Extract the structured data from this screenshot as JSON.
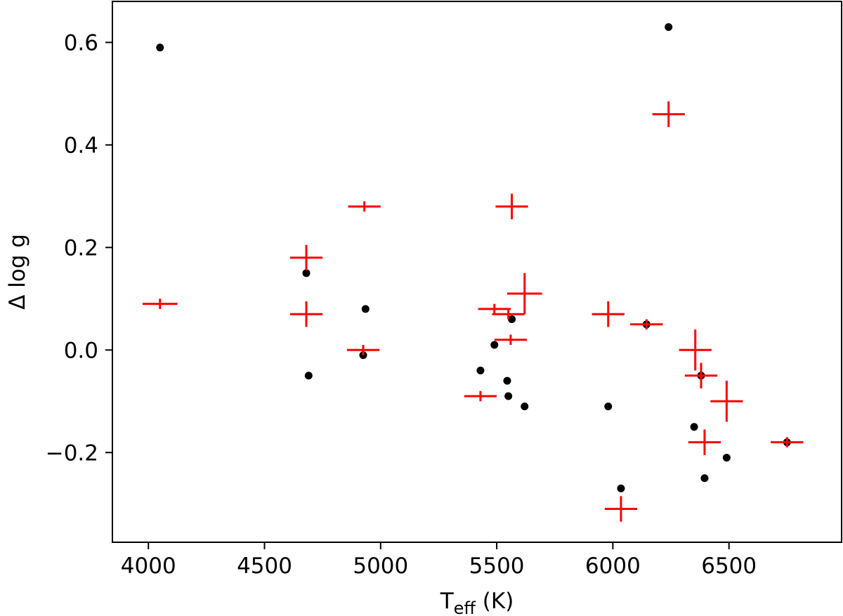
{
  "chart_data": {
    "type": "scatter",
    "xlabel": "T",
    "xlabel_subscript": "eff",
    "xlabel_suffix": " (K)",
    "ylabel": "Δ log g",
    "xlim": [
      3845,
      6985
    ],
    "ylim": [
      -0.375,
      0.68
    ],
    "xticks": [
      4000,
      4500,
      5000,
      5500,
      6000,
      6500
    ],
    "xtick_labels": [
      "4000",
      "4500",
      "5000",
      "5500",
      "6000",
      "6500"
    ],
    "yticks": [
      -0.2,
      0.0,
      0.2,
      0.4,
      0.6
    ],
    "ytick_labels": [
      "−0.2",
      "0.0",
      "0.2",
      "0.4",
      "0.6"
    ],
    "grid": false,
    "series": [
      {
        "marker": "dot",
        "color": "#000000",
        "points": [
          {
            "x": 4050,
            "y": 0.59
          },
          {
            "x": 4680,
            "y": 0.15
          },
          {
            "x": 4690,
            "y": -0.05
          },
          {
            "x": 4925,
            "y": -0.01
          },
          {
            "x": 4935,
            "y": 0.08
          },
          {
            "x": 5430,
            "y": -0.04
          },
          {
            "x": 5490,
            "y": 0.01
          },
          {
            "x": 5545,
            "y": -0.06
          },
          {
            "x": 5550,
            "y": -0.09
          },
          {
            "x": 5565,
            "y": 0.06
          },
          {
            "x": 5620,
            "y": -0.11
          },
          {
            "x": 5980,
            "y": -0.11
          },
          {
            "x": 6035,
            "y": -0.27
          },
          {
            "x": 6145,
            "y": 0.05
          },
          {
            "x": 6240,
            "y": 0.63
          },
          {
            "x": 6350,
            "y": -0.15
          },
          {
            "x": 6380,
            "y": -0.05
          },
          {
            "x": 6395,
            "y": -0.25
          },
          {
            "x": 6490,
            "y": -0.21
          },
          {
            "x": 6750,
            "y": -0.18
          }
        ]
      },
      {
        "marker": "cross",
        "color": "#ff0000",
        "points": [
          {
            "x": 4050,
            "y": 0.09,
            "xerr": 75,
            "yerr": 0.01
          },
          {
            "x": 4680,
            "y": 0.18,
            "xerr": 70,
            "yerr": 0.025
          },
          {
            "x": 4680,
            "y": 0.07,
            "xerr": 70,
            "yerr": 0.025
          },
          {
            "x": 4930,
            "y": 0.28,
            "xerr": 70,
            "yerr": 0.01
          },
          {
            "x": 4925,
            "y": 0.0,
            "xerr": 70,
            "yerr": 0.01
          },
          {
            "x": 5430,
            "y": -0.09,
            "xerr": 70,
            "yerr": 0.01
          },
          {
            "x": 5490,
            "y": 0.08,
            "xerr": 70,
            "yerr": 0.01
          },
          {
            "x": 5550,
            "y": 0.07,
            "xerr": 70,
            "yerr": 0.01
          },
          {
            "x": 5560,
            "y": 0.02,
            "xerr": 70,
            "yerr": 0.01
          },
          {
            "x": 5565,
            "y": 0.28,
            "xerr": 70,
            "yerr": 0.025
          },
          {
            "x": 5620,
            "y": 0.11,
            "xerr": 75,
            "yerr": 0.04
          },
          {
            "x": 5980,
            "y": 0.07,
            "xerr": 70,
            "yerr": 0.025
          },
          {
            "x": 6035,
            "y": -0.31,
            "xerr": 70,
            "yerr": 0.025
          },
          {
            "x": 6145,
            "y": 0.05,
            "xerr": 70,
            "yerr": 0.01
          },
          {
            "x": 6240,
            "y": 0.46,
            "xerr": 70,
            "yerr": 0.025
          },
          {
            "x": 6355,
            "y": 0.0,
            "xerr": 70,
            "yerr": 0.04
          },
          {
            "x": 6380,
            "y": -0.05,
            "xerr": 70,
            "yerr": 0.025
          },
          {
            "x": 6395,
            "y": -0.18,
            "xerr": 70,
            "yerr": 0.025
          },
          {
            "x": 6490,
            "y": -0.1,
            "xerr": 70,
            "yerr": 0.04
          },
          {
            "x": 6750,
            "y": -0.18,
            "xerr": 70,
            "yerr": 0.01
          }
        ]
      }
    ]
  }
}
